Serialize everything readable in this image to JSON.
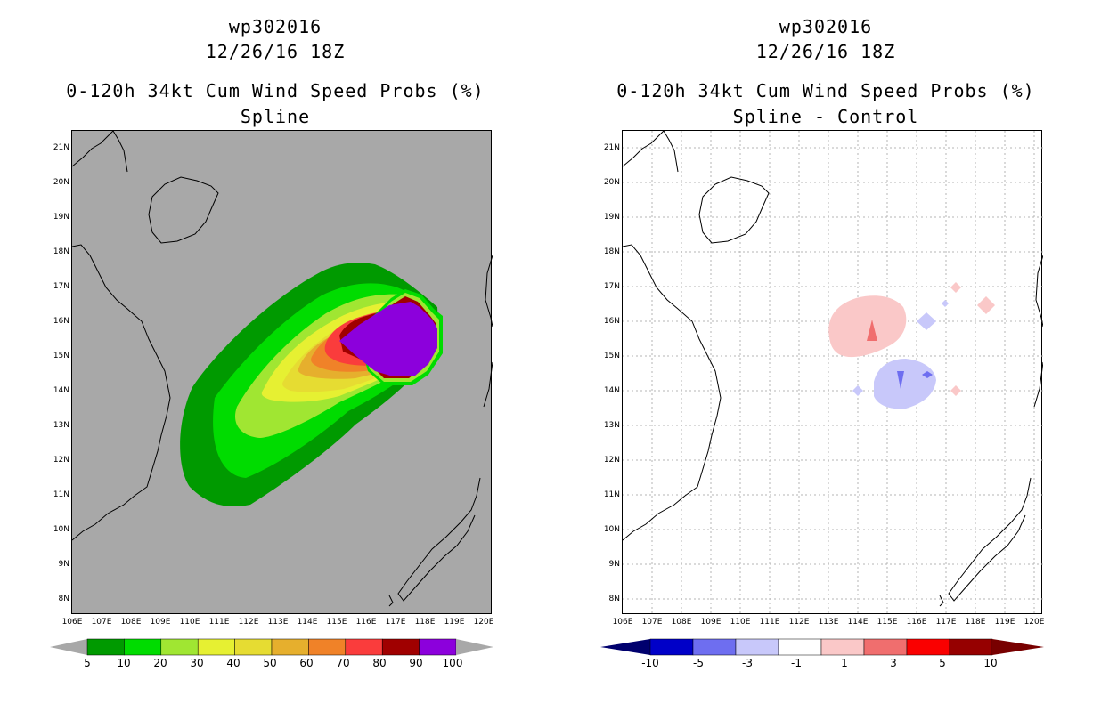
{
  "left": {
    "title_line1": "wp302016",
    "title_line2": "12/26/16 18Z",
    "title_line3": "0-120h 34kt Cum Wind Speed Probs (%)",
    "title_line4": "Spline",
    "background_color": "#a8a8a8",
    "colorbar": {
      "labels": [
        "5",
        "10",
        "20",
        "30",
        "40",
        "50",
        "60",
        "70",
        "80",
        "90",
        "100"
      ],
      "colors": [
        "#009a00",
        "#00dc00",
        "#a0e632",
        "#e6f032",
        "#e6dc32",
        "#e6af2d",
        "#f08228",
        "#fa3c3c",
        "#a00000",
        "#8c00dc"
      ]
    }
  },
  "right": {
    "title_line1": "wp302016",
    "title_line2": "12/26/16 18Z",
    "title_line3": "0-120h 34kt Cum Wind Speed Probs (%)",
    "title_line4": "Spline - Control",
    "colorbar": {
      "labels": [
        "-10",
        "-5",
        "-3",
        "-1",
        "1",
        "3",
        "5",
        "10"
      ],
      "colors": [
        "#0000c8",
        "#6e6ef0",
        "#c8c8fa",
        "#ffffff",
        "#fac8c8",
        "#f06e6e",
        "#fa0000",
        "#960000"
      ]
    }
  },
  "lat_labels": [
    "21N",
    "20N",
    "19N",
    "18N",
    "17N",
    "16N",
    "15N",
    "14N",
    "13N",
    "12N",
    "11N",
    "10N",
    "9N",
    "8N"
  ],
  "lon_labels": [
    "106E",
    "107E",
    "108E",
    "109E",
    "110E",
    "111E",
    "112E",
    "113E",
    "114E",
    "115E",
    "116E",
    "117E",
    "118E",
    "119E",
    "120E"
  ]
}
